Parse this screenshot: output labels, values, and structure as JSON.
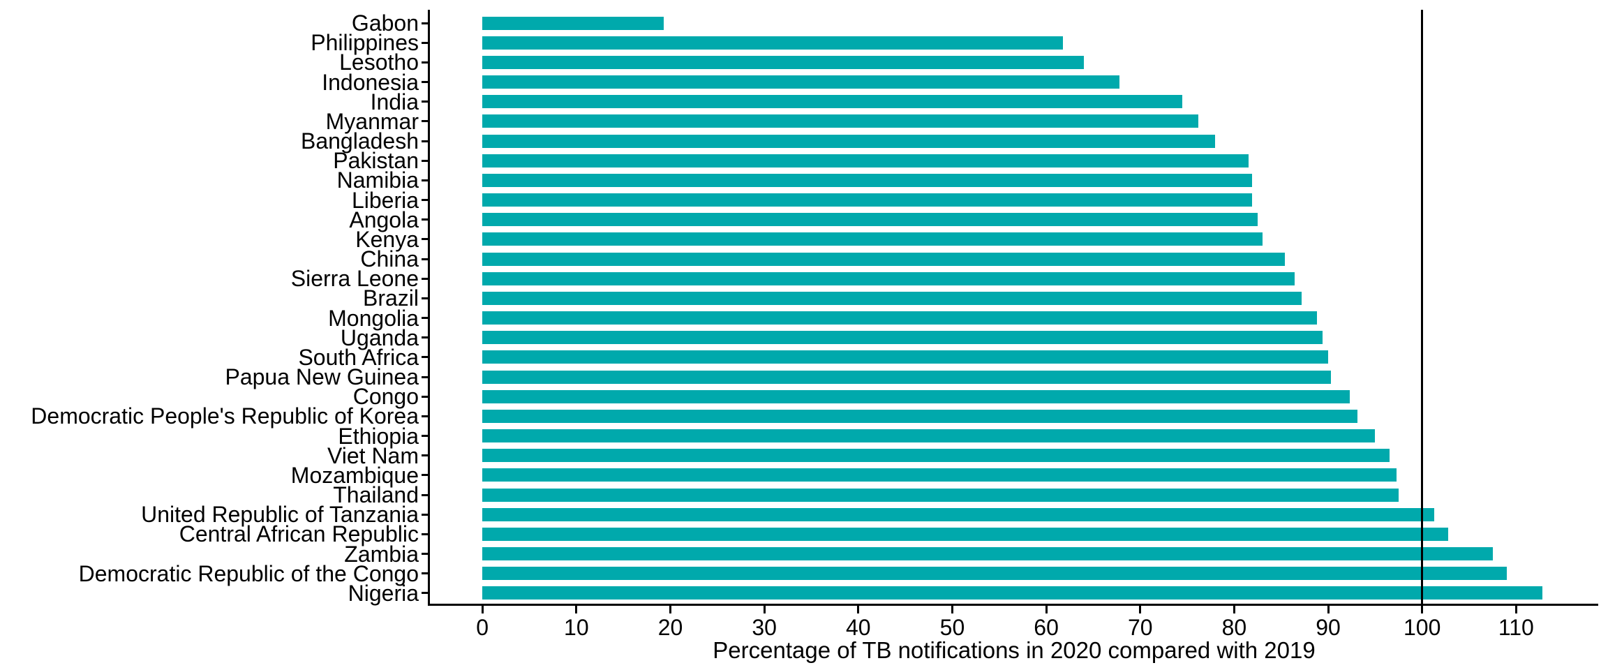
{
  "chart": {
    "xlabel": "Percentage of TB notifications in 2020 compared with 2019",
    "bar_color": "#00A9AC",
    "axis_color": "#000000",
    "reference_line_x": 100
  },
  "chart_data": {
    "type": "bar",
    "orientation": "horizontal",
    "title": "",
    "xlabel": "Percentage of TB notifications in 2020 compared with 2019",
    "ylabel": "",
    "categories": [
      "Gabon",
      "Philippines",
      "Lesotho",
      "Indonesia",
      "India",
      "Myanmar",
      "Bangladesh",
      "Pakistan",
      "Namibia",
      "Liberia",
      "Angola",
      "Kenya",
      "China",
      "Sierra Leone",
      "Brazil",
      "Mongolia",
      "Uganda",
      "South Africa",
      "Papua New Guinea",
      "Congo",
      "Democratic People's Republic of Korea",
      "Ethiopia",
      "Viet Nam",
      "Mozambique",
      "Thailand",
      "United Republic of Tanzania",
      "Central African Republic",
      "Zambia",
      "Democratic Republic of the Congo",
      "Nigeria"
    ],
    "values": [
      19.3,
      61.8,
      64.0,
      67.8,
      74.5,
      76.2,
      78.0,
      81.5,
      81.9,
      81.9,
      82.5,
      83.0,
      85.4,
      86.4,
      87.2,
      88.8,
      89.4,
      90.0,
      90.3,
      92.3,
      93.1,
      95.0,
      96.5,
      97.3,
      97.5,
      101.3,
      102.8,
      107.5,
      109.0,
      112.8
    ],
    "xticks": [
      0,
      10,
      20,
      30,
      40,
      50,
      60,
      70,
      80,
      90,
      100,
      110
    ],
    "xlim": [
      0,
      118
    ],
    "reference_line_x": 100,
    "bar_color": "#00A9AC",
    "grid": false,
    "legend": false
  }
}
